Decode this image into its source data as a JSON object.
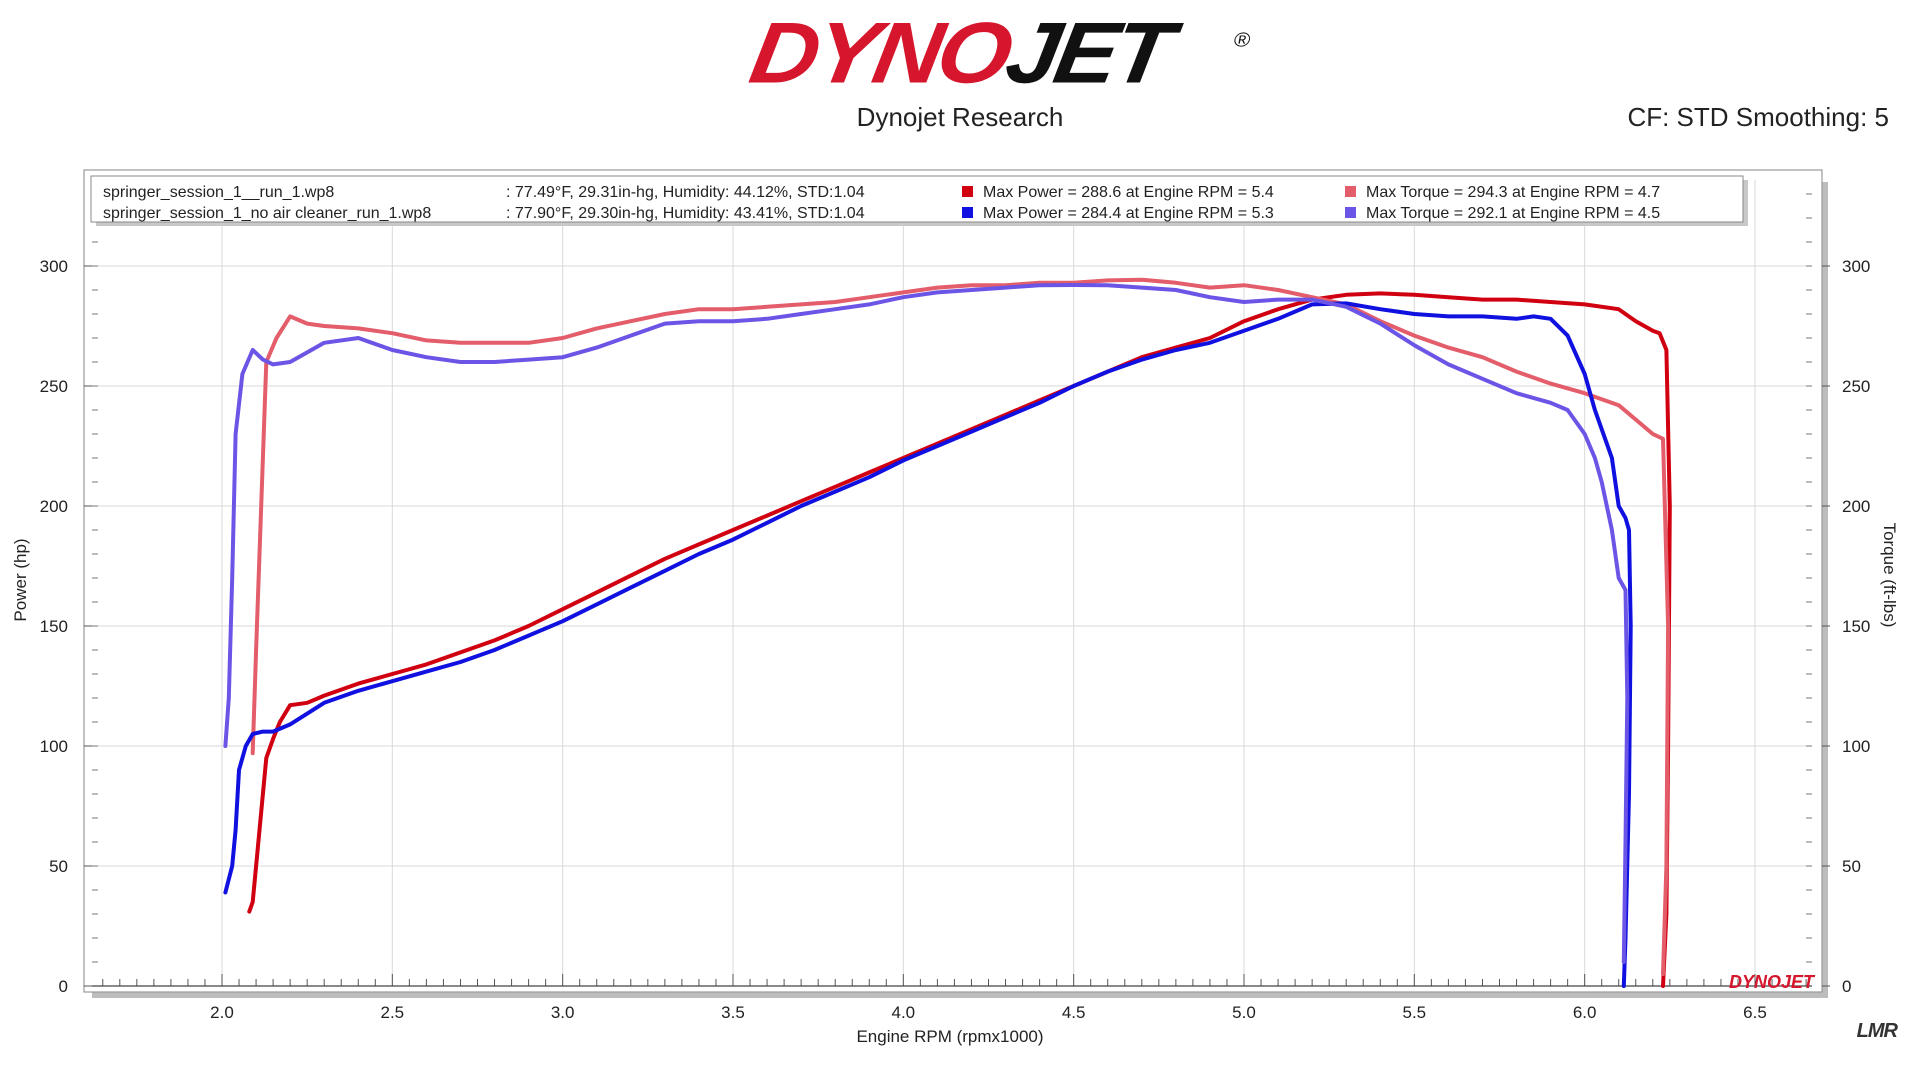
{
  "header": {
    "logo_red": "DYNO",
    "logo_black": "JET",
    "logo_reg": "®",
    "subtitle": "Dynojet Research",
    "cf_label": "CF: STD Smoothing: 5"
  },
  "watermark": "LMR",
  "legend": {
    "rows": [
      {
        "file": "springer_session_1__run_1.wp8",
        "conditions": ": 77.49°F, 29.31in-hg, Humidity: 44.12%, STD:1.04",
        "power_text": "Max Power = 288.6 at Engine RPM = 5.4",
        "torque_text": "Max Torque = 294.3 at Engine RPM = 4.7",
        "power_color": "#d00010",
        "torque_color": "#e35d6a"
      },
      {
        "file": "springer_session_1_no air cleaner_run_1.wp8",
        "conditions": ": 77.90°F, 29.30in-hg, Humidity: 43.41%, STD:1.04",
        "power_text": "Max Power = 284.4 at Engine RPM = 5.3",
        "torque_text": "Max Torque = 292.1 at Engine RPM = 4.5",
        "power_color": "#1010e0",
        "torque_color": "#6b55e6"
      }
    ]
  },
  "chart_data": {
    "type": "line",
    "xlabel": "Engine RPM (rpmx1000)",
    "ylabel": "Power (hp)",
    "y2label": "Torque (ft-lbs)",
    "xlim": [
      1.6,
      6.7
    ],
    "ylim": [
      0,
      330
    ],
    "y2lim": [
      0,
      330
    ],
    "xticks": [
      "2.0",
      "2.5",
      "3.0",
      "3.5",
      "4.0",
      "4.5",
      "5.0",
      "5.5",
      "6.0",
      "6.5"
    ],
    "yticks": [
      "0",
      "50",
      "100",
      "150",
      "200",
      "250",
      "300"
    ],
    "y2ticks": [
      "0",
      "50",
      "100",
      "150",
      "200",
      "250",
      "300"
    ],
    "grid": true,
    "plot_logo": "DYNOJET",
    "series": [
      {
        "name": "springer_session_1__run_1.wp8 Power",
        "color": "#d00010",
        "axis": "left",
        "points": [
          [
            2.08,
            31
          ],
          [
            2.09,
            35
          ],
          [
            2.11,
            65
          ],
          [
            2.13,
            95
          ],
          [
            2.15,
            103
          ],
          [
            2.17,
            110
          ],
          [
            2.2,
            117
          ],
          [
            2.25,
            118
          ],
          [
            2.3,
            121
          ],
          [
            2.4,
            126
          ],
          [
            2.5,
            130
          ],
          [
            2.6,
            134
          ],
          [
            2.7,
            139
          ],
          [
            2.8,
            144
          ],
          [
            2.9,
            150
          ],
          [
            3.0,
            157
          ],
          [
            3.1,
            164
          ],
          [
            3.2,
            171
          ],
          [
            3.3,
            178
          ],
          [
            3.4,
            184
          ],
          [
            3.5,
            190
          ],
          [
            3.6,
            196
          ],
          [
            3.7,
            202
          ],
          [
            3.8,
            208
          ],
          [
            3.9,
            214
          ],
          [
            4.0,
            220
          ],
          [
            4.1,
            226
          ],
          [
            4.2,
            232
          ],
          [
            4.3,
            238
          ],
          [
            4.4,
            244
          ],
          [
            4.5,
            250
          ],
          [
            4.6,
            256
          ],
          [
            4.7,
            262
          ],
          [
            4.8,
            266
          ],
          [
            4.9,
            270
          ],
          [
            5.0,
            277
          ],
          [
            5.1,
            282
          ],
          [
            5.2,
            286
          ],
          [
            5.3,
            288
          ],
          [
            5.4,
            288.6
          ],
          [
            5.5,
            288
          ],
          [
            5.6,
            287
          ],
          [
            5.7,
            286
          ],
          [
            5.8,
            286
          ],
          [
            5.9,
            285
          ],
          [
            6.0,
            284
          ],
          [
            6.1,
            282
          ],
          [
            6.15,
            277
          ],
          [
            6.2,
            273
          ],
          [
            6.22,
            272
          ],
          [
            6.24,
            265
          ],
          [
            6.25,
            200
          ],
          [
            6.245,
            100
          ],
          [
            6.24,
            30
          ],
          [
            6.23,
            0
          ]
        ]
      },
      {
        "name": "springer_session_1__run_1.wp8 Torque",
        "color": "#e35d6a",
        "axis": "right",
        "points": [
          [
            2.09,
            97
          ],
          [
            2.1,
            140
          ],
          [
            2.13,
            260
          ],
          [
            2.16,
            270
          ],
          [
            2.2,
            279
          ],
          [
            2.25,
            276
          ],
          [
            2.3,
            275
          ],
          [
            2.4,
            274
          ],
          [
            2.5,
            272
          ],
          [
            2.6,
            269
          ],
          [
            2.7,
            268
          ],
          [
            2.8,
            268
          ],
          [
            2.9,
            268
          ],
          [
            3.0,
            270
          ],
          [
            3.1,
            274
          ],
          [
            3.2,
            277
          ],
          [
            3.3,
            280
          ],
          [
            3.4,
            282
          ],
          [
            3.5,
            282
          ],
          [
            3.6,
            283
          ],
          [
            3.7,
            284
          ],
          [
            3.8,
            285
          ],
          [
            3.9,
            287
          ],
          [
            4.0,
            289
          ],
          [
            4.1,
            291
          ],
          [
            4.2,
            292
          ],
          [
            4.3,
            292
          ],
          [
            4.4,
            293
          ],
          [
            4.5,
            293
          ],
          [
            4.6,
            294
          ],
          [
            4.7,
            294.3
          ],
          [
            4.8,
            293
          ],
          [
            4.9,
            291
          ],
          [
            5.0,
            292
          ],
          [
            5.1,
            290
          ],
          [
            5.2,
            287
          ],
          [
            5.3,
            284
          ],
          [
            5.4,
            277
          ],
          [
            5.5,
            271
          ],
          [
            5.6,
            266
          ],
          [
            5.7,
            262
          ],
          [
            5.8,
            256
          ],
          [
            5.9,
            251
          ],
          [
            6.0,
            247
          ],
          [
            6.1,
            242
          ],
          [
            6.15,
            236
          ],
          [
            6.2,
            230
          ],
          [
            6.23,
            228
          ],
          [
            6.245,
            150
          ],
          [
            6.24,
            50
          ],
          [
            6.23,
            5
          ]
        ]
      },
      {
        "name": "springer_session_1_no air cleaner_run_1.wp8 Power",
        "color": "#1010e0",
        "axis": "left",
        "points": [
          [
            2.01,
            39
          ],
          [
            2.03,
            50
          ],
          [
            2.04,
            65
          ],
          [
            2.05,
            90
          ],
          [
            2.07,
            100
          ],
          [
            2.09,
            105
          ],
          [
            2.12,
            106
          ],
          [
            2.15,
            106
          ],
          [
            2.2,
            109
          ],
          [
            2.3,
            118
          ],
          [
            2.4,
            123
          ],
          [
            2.5,
            127
          ],
          [
            2.6,
            131
          ],
          [
            2.7,
            135
          ],
          [
            2.8,
            140
          ],
          [
            2.9,
            146
          ],
          [
            3.0,
            152
          ],
          [
            3.1,
            159
          ],
          [
            3.2,
            166
          ],
          [
            3.3,
            173
          ],
          [
            3.4,
            180
          ],
          [
            3.5,
            186
          ],
          [
            3.6,
            193
          ],
          [
            3.7,
            200
          ],
          [
            3.8,
            206
          ],
          [
            3.9,
            212
          ],
          [
            4.0,
            219
          ],
          [
            4.1,
            225
          ],
          [
            4.2,
            231
          ],
          [
            4.3,
            237
          ],
          [
            4.4,
            243
          ],
          [
            4.5,
            250
          ],
          [
            4.6,
            256
          ],
          [
            4.7,
            261
          ],
          [
            4.8,
            265
          ],
          [
            4.9,
            268
          ],
          [
            5.0,
            273
          ],
          [
            5.1,
            278
          ],
          [
            5.2,
            284
          ],
          [
            5.3,
            284.4
          ],
          [
            5.4,
            282
          ],
          [
            5.5,
            280
          ],
          [
            5.6,
            279
          ],
          [
            5.7,
            279
          ],
          [
            5.8,
            278
          ],
          [
            5.85,
            279
          ],
          [
            5.9,
            278
          ],
          [
            5.95,
            271
          ],
          [
            6.0,
            255
          ],
          [
            6.03,
            240
          ],
          [
            6.05,
            232
          ],
          [
            6.08,
            220
          ],
          [
            6.1,
            200
          ],
          [
            6.12,
            195
          ],
          [
            6.13,
            190
          ],
          [
            6.135,
            150
          ],
          [
            6.13,
            80
          ],
          [
            6.12,
            20
          ],
          [
            6.115,
            0
          ]
        ]
      },
      {
        "name": "springer_session_1_no air cleaner_run_1.wp8 Torque",
        "color": "#6b55e6",
        "axis": "right",
        "points": [
          [
            2.01,
            100
          ],
          [
            2.02,
            120
          ],
          [
            2.03,
            170
          ],
          [
            2.04,
            230
          ],
          [
            2.06,
            255
          ],
          [
            2.09,
            265
          ],
          [
            2.12,
            261
          ],
          [
            2.15,
            259
          ],
          [
            2.2,
            260
          ],
          [
            2.25,
            264
          ],
          [
            2.3,
            268
          ],
          [
            2.4,
            270
          ],
          [
            2.5,
            265
          ],
          [
            2.6,
            262
          ],
          [
            2.7,
            260
          ],
          [
            2.8,
            260
          ],
          [
            2.9,
            261
          ],
          [
            3.0,
            262
          ],
          [
            3.1,
            266
          ],
          [
            3.2,
            271
          ],
          [
            3.3,
            276
          ],
          [
            3.4,
            277
          ],
          [
            3.5,
            277
          ],
          [
            3.6,
            278
          ],
          [
            3.7,
            280
          ],
          [
            3.8,
            282
          ],
          [
            3.9,
            284
          ],
          [
            4.0,
            287
          ],
          [
            4.1,
            289
          ],
          [
            4.2,
            290
          ],
          [
            4.3,
            291
          ],
          [
            4.4,
            292
          ],
          [
            4.5,
            292.1
          ],
          [
            4.6,
            292
          ],
          [
            4.7,
            291
          ],
          [
            4.8,
            290
          ],
          [
            4.9,
            287
          ],
          [
            5.0,
            285
          ],
          [
            5.1,
            286
          ],
          [
            5.2,
            286
          ],
          [
            5.3,
            283
          ],
          [
            5.4,
            276
          ],
          [
            5.5,
            267
          ],
          [
            5.6,
            259
          ],
          [
            5.7,
            253
          ],
          [
            5.8,
            247
          ],
          [
            5.9,
            243
          ],
          [
            5.95,
            240
          ],
          [
            6.0,
            230
          ],
          [
            6.03,
            220
          ],
          [
            6.05,
            210
          ],
          [
            6.08,
            190
          ],
          [
            6.1,
            170
          ],
          [
            6.12,
            165
          ],
          [
            6.125,
            120
          ],
          [
            6.12,
            60
          ],
          [
            6.115,
            10
          ]
        ]
      }
    ]
  }
}
